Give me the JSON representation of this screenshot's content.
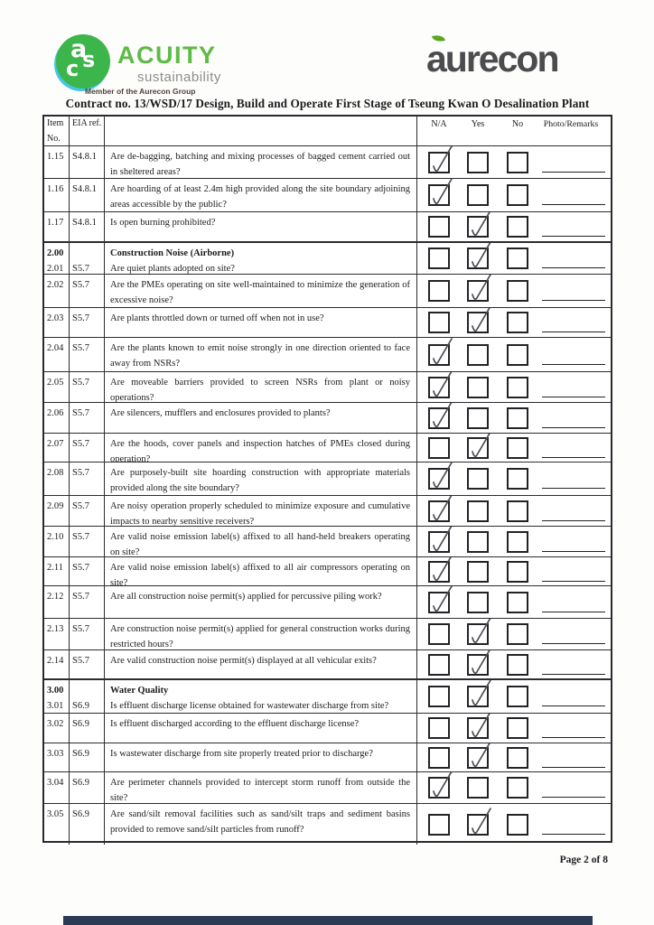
{
  "branding": {
    "acuity": {
      "monogram_letters": [
        "a",
        "s",
        "c"
      ],
      "name": "ACUITY",
      "tagline": "sustainability",
      "member_note": "Member of the Aurecon Group",
      "green": "#3cb54b",
      "cyan": "#45c6e8",
      "wordmark_green": "#5fba46"
    },
    "aurecon": {
      "name": "aurecon",
      "text_gray": "#4c4c4e",
      "leaf_green": "#58a81f"
    }
  },
  "title": "Contract no.  13/WSD/17 Design, Build and Operate First Stage of Tseung Kwan O Desalination Plant",
  "table": {
    "headers": {
      "item_line1": "Item",
      "item_line2": "No.",
      "eia_ref": "EIA ref.",
      "na": "N/A",
      "yes": "Yes",
      "no": "No",
      "remarks": "Photo/Remarks"
    },
    "rows": [
      {
        "item": "1.15",
        "ref": "S4.8.1",
        "question": "Are de-bagging, batching and mixing processes of bagged cement carried out in sheltered areas?",
        "check": "na"
      },
      {
        "item": "1.16",
        "ref": "S4.8.1",
        "question": "Are hoarding of at least 2.4m high provided along the site boundary adjoining areas accessible by the public?",
        "check": "na"
      },
      {
        "item": "1.17",
        "ref": "S4.8.1",
        "question": "Is open burning prohibited?",
        "check": "yes"
      },
      {
        "section": "2.00",
        "section_title": "Construction Noise (Airborne)",
        "item": "2.01",
        "ref": "S5.7",
        "question": "Are quiet plants adopted on site?",
        "check": "yes"
      },
      {
        "item": "2.02",
        "ref": "S5.7",
        "question": "Are the PMEs operating on site well-maintained to minimize the generation of excessive noise?",
        "check": "yes"
      },
      {
        "item": "2.03",
        "ref": "S5.7",
        "question": "Are plants throttled down or turned off when not in use?",
        "check": "yes"
      },
      {
        "item": "2.04",
        "ref": "S5.7",
        "question": "Are the plants known to emit noise strongly in one direction oriented to face away from NSRs?",
        "check": "na"
      },
      {
        "item": "2.05",
        "ref": "S5.7",
        "question": "Are moveable barriers provided to screen NSRs from plant or noisy operations?",
        "check": "na"
      },
      {
        "item": "2.06",
        "ref": "S5.7",
        "question": "Are silencers, mufflers and enclosures provided to plants?",
        "check": "na"
      },
      {
        "item": "2.07",
        "ref": "S5.7",
        "question": "Are the hoods, cover panels and inspection hatches of PMEs closed during operation?",
        "check": "yes"
      },
      {
        "item": "2.08",
        "ref": "S5.7",
        "question": "Are purposely-built site hoarding construction with appropriate materials provided along the site boundary?",
        "check": "na"
      },
      {
        "item": "2.09",
        "ref": "S5.7",
        "question": "Are noisy operation properly scheduled to minimize exposure and cumulative impacts to nearby sensitive receivers?",
        "check": "na"
      },
      {
        "item": "2.10",
        "ref": "S5.7",
        "question": "Are valid noise emission label(s) affixed to all hand-held breakers operating on site?",
        "check": "na"
      },
      {
        "item": "2.11",
        "ref": "S5.7",
        "question": "Are valid noise emission label(s) affixed to all air compressors operating on site?",
        "check": "na"
      },
      {
        "item": "2.12",
        "ref": "S5.7",
        "question": "Are all construction noise permit(s) applied for percussive piling work?",
        "check": "na"
      },
      {
        "item": "2.13",
        "ref": "S5.7",
        "question": "Are construction noise permit(s) applied for general construction works during restricted hours?",
        "check": "yes"
      },
      {
        "item": "2.14",
        "ref": "S5.7",
        "question": "Are valid construction noise permit(s) displayed at all vehicular exits?",
        "check": "yes"
      },
      {
        "section": "3.00",
        "section_title": "Water Quality",
        "item": "3.01",
        "ref": "S6.9",
        "question": "Is effluent discharge license obtained for wastewater discharge from site?",
        "check": "yes"
      },
      {
        "item": "3.02",
        "ref": "S6.9",
        "question": "Is effluent discharged according to the effluent discharge license?",
        "check": "yes"
      },
      {
        "item": "3.03",
        "ref": "S6.9",
        "question": "Is wastewater discharge from site properly treated prior to discharge?",
        "check": "yes"
      },
      {
        "item": "3.04",
        "ref": "S6.9",
        "question": "Are perimeter channels provided to intercept storm runoff from outside the site?",
        "check": "na"
      },
      {
        "item": "3.05",
        "ref": "S6.9",
        "question": "Are sand/silt removal facilities such as sand/silt traps and sediment basins provided to remove sand/silt particles from runoff?",
        "check": "yes"
      }
    ]
  },
  "footer": {
    "page_label": "Page 2 of 8",
    "scan_bar_color": "#2c3a55"
  }
}
